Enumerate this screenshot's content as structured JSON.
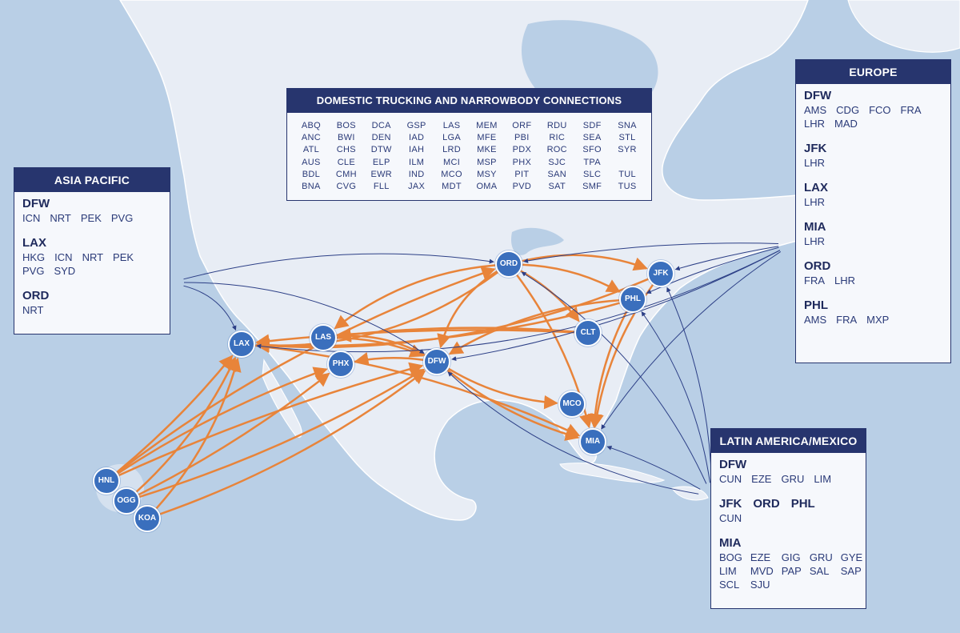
{
  "colors": {
    "ocean": "#b9cfe6",
    "land": "#e8edf5",
    "panel_header": "#27356e",
    "node": "#3a6fbd",
    "widebody_route": "#e8843a",
    "international_route": "#2c3f86"
  },
  "domestic": {
    "title": "DOMESTIC TRUCKING AND NARROWBODY CONNECTIONS",
    "airports": [
      "ABQ",
      "BOS",
      "DCA",
      "GSP",
      "LAS",
      "MEM",
      "ORF",
      "RDU",
      "SDF",
      "SNA",
      "ANC",
      "BWI",
      "DEN",
      "IAD",
      "LGA",
      "MFE",
      "PBI",
      "RIC",
      "SEA",
      "STL",
      "ATL",
      "CHS",
      "DTW",
      "IAH",
      "LRD",
      "MKE",
      "PDX",
      "ROC",
      "SFO",
      "SYR",
      "AUS",
      "CLE",
      "ELP",
      "ILM",
      "MCI",
      "MSP",
      "PHX",
      "SJC",
      "TPA",
      "BDL",
      "CMH",
      "EWR",
      "IND",
      "MCO",
      "MSY",
      "PIT",
      "SAN",
      "SLC",
      "TUL",
      "BNA",
      "CVG",
      "FLL",
      "JAX",
      "MDT",
      "OMA",
      "PVD",
      "SAT",
      "SMF",
      "TUS"
    ]
  },
  "asia": {
    "title": "ASIA PACIFIC",
    "groups": [
      {
        "hubs": [
          "DFW"
        ],
        "dests": [
          "ICN",
          "NRT",
          "PEK",
          "PVG"
        ]
      },
      {
        "hubs": [
          "LAX"
        ],
        "dests": [
          "HKG",
          "ICN",
          "NRT",
          "PEK",
          "PVG",
          "SYD"
        ]
      },
      {
        "hubs": [
          "ORD"
        ],
        "dests": [
          "NRT"
        ]
      }
    ]
  },
  "europe": {
    "title": "EUROPE",
    "groups": [
      {
        "hubs": [
          "DFW"
        ],
        "dests": [
          "AMS",
          "CDG",
          "FCO",
          "FRA",
          "LHR",
          "MAD"
        ]
      },
      {
        "hubs": [
          "JFK"
        ],
        "dests": [
          "LHR"
        ]
      },
      {
        "hubs": [
          "LAX"
        ],
        "dests": [
          "LHR"
        ]
      },
      {
        "hubs": [
          "MIA"
        ],
        "dests": [
          "LHR"
        ]
      },
      {
        "hubs": [
          "ORD"
        ],
        "dests": [
          "FRA",
          "LHR"
        ]
      },
      {
        "hubs": [
          "PHL"
        ],
        "dests": [
          "AMS",
          "FRA",
          "MXP"
        ]
      }
    ]
  },
  "latam": {
    "title": "LATIN AMERICA/MEXICO",
    "groups": [
      {
        "hubs": [
          "DFW"
        ],
        "dests": [
          "CUN",
          "EZE",
          "GRU",
          "LIM"
        ]
      },
      {
        "hubs": [
          "JFK",
          "ORD",
          "PHL"
        ],
        "dests": [
          "CUN"
        ]
      },
      {
        "hubs": [
          "MIA"
        ],
        "dests": [
          "BOG",
          "EZE",
          "GIG",
          "GRU",
          "GYE",
          "LIM",
          "MVD",
          "PAP",
          "SAL",
          "SAP",
          "SCL",
          "SJU"
        ]
      }
    ]
  },
  "nodes": {
    "ORD": "ORD",
    "JFK": "JFK",
    "PHL": "PHL",
    "CLT": "CLT",
    "LAX": "LAX",
    "LAS": "LAS",
    "PHX": "PHX",
    "DFW": "DFW",
    "MCO": "MCO",
    "MIA": "MIA",
    "HNL": "HNL",
    "OGG": "OGG",
    "KOA": "KOA"
  }
}
